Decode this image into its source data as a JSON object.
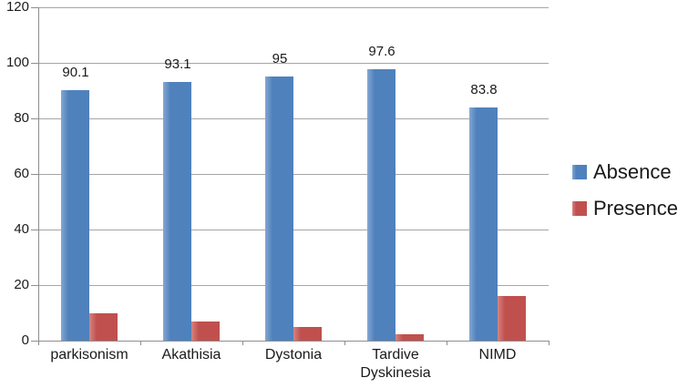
{
  "chart_data": {
    "type": "bar",
    "title": "",
    "categories": [
      "parkisonism",
      "Akathisia",
      "Dystonia",
      "Tardive Dyskinesia",
      "NIMD"
    ],
    "series": [
      {
        "name": "Absence",
        "color": "#4F81BD",
        "values": [
          90.1,
          93.1,
          95,
          97.6,
          83.8
        ],
        "data_labels": [
          "90.1",
          "93.1",
          "95",
          "97.6",
          "83.8"
        ]
      },
      {
        "name": "Presence",
        "color": "#C0504D",
        "values": [
          9.9,
          6.9,
          5,
          2.4,
          16.2
        ],
        "data_labels": []
      }
    ],
    "xlabel": "",
    "ylabel": "",
    "ylim": [
      0,
      120
    ],
    "yticks": [
      0,
      20,
      40,
      60,
      80,
      100,
      120
    ],
    "grid": true,
    "legend_position": "middle-right"
  },
  "legend": {
    "items": [
      {
        "label": "Absence",
        "color": "#4F81BD"
      },
      {
        "label": "Presence",
        "color": "#C0504D"
      }
    ]
  },
  "style": {
    "background": "#FFFFFF",
    "gridline_color": "#A6A6A6",
    "axis_color": "#8E8E8E",
    "text_color": "#1A1A1A"
  }
}
